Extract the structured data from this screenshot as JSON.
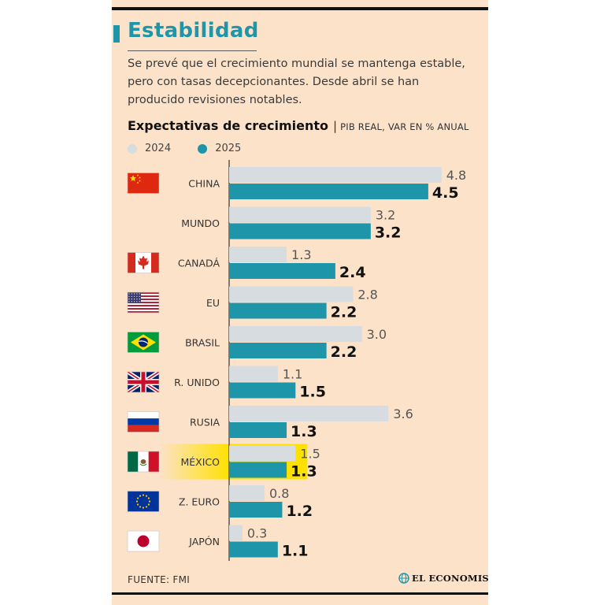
{
  "title": "Estabilidad",
  "subtitle": "Se prevé que el crecimiento mundial se mantenga estable, pero con tasas decepcionantes. Desde abril se han producido revisiones notables.",
  "chart_heading": "Expectativas de crecimiento",
  "chart_unit": "PIB REAL, VAR EN % ANUAL",
  "source": "FUENTE:  FMI",
  "logo_text": "EL ECONOMISTA",
  "colors": {
    "background": "#fce2c9",
    "title": "#1e95a8",
    "series_2024": "#d6dcdf",
    "series_2025": "#1e95a8",
    "highlight": "#ffe100"
  },
  "chart_data": {
    "type": "bar",
    "orientation": "horizontal",
    "categories": [
      "CHINA",
      "MUNDO",
      "CANADÁ",
      "EU",
      "BRASIL",
      "R. UNIDO",
      "RUSIA",
      "MÉXICO",
      "Z. EURO",
      "JAPÓN"
    ],
    "flags": [
      "china-flag-icon",
      "",
      "canada-flag-icon",
      "usa-flag-icon",
      "brazil-flag-icon",
      "uk-flag-icon",
      "russia-flag-icon",
      "mexico-flag-icon",
      "eu-flag-icon",
      "japan-flag-icon"
    ],
    "highlight_category": "MÉXICO",
    "series": [
      {
        "name": "2024",
        "values": [
          4.8,
          3.2,
          1.3,
          2.8,
          3.0,
          1.1,
          3.6,
          1.5,
          0.8,
          0.3
        ],
        "labels": [
          "4.8",
          "3.2",
          "1.3",
          "2.8",
          "3.0",
          "1.1",
          "3.6",
          "1.5",
          "0.8",
          "0.3"
        ]
      },
      {
        "name": "2025",
        "values": [
          4.5,
          3.2,
          2.4,
          2.2,
          2.2,
          1.5,
          1.3,
          1.3,
          1.2,
          1.1
        ],
        "labels": [
          "4.5",
          "3.2",
          "2.4",
          "2.2",
          "2.2",
          "1.5",
          "1.3",
          "1.3",
          "1.2",
          "1.1"
        ]
      }
    ],
    "xlim": [
      0,
      5
    ],
    "grid": false,
    "legend_position": "top-left"
  }
}
